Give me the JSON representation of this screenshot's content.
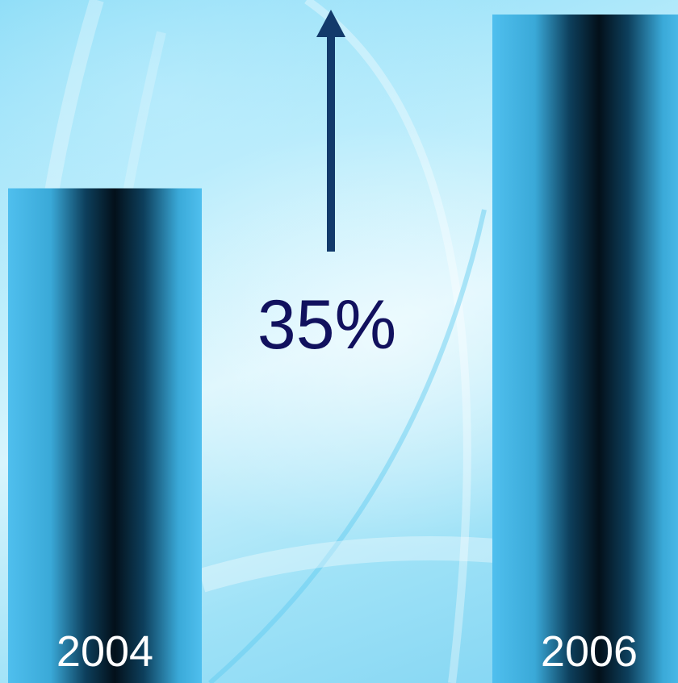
{
  "chart_data": {
    "type": "bar",
    "categories": [
      "2004",
      "2006"
    ],
    "values": [
      74,
      100
    ],
    "ylim": [
      0,
      100
    ],
    "annotation": "35%",
    "colors": {
      "bar_edge": "#4fbfee",
      "bar_core": "#03101a",
      "arrow": "#123a6b",
      "annotation_text": "#11115e",
      "label_text": "#ffffff"
    }
  }
}
